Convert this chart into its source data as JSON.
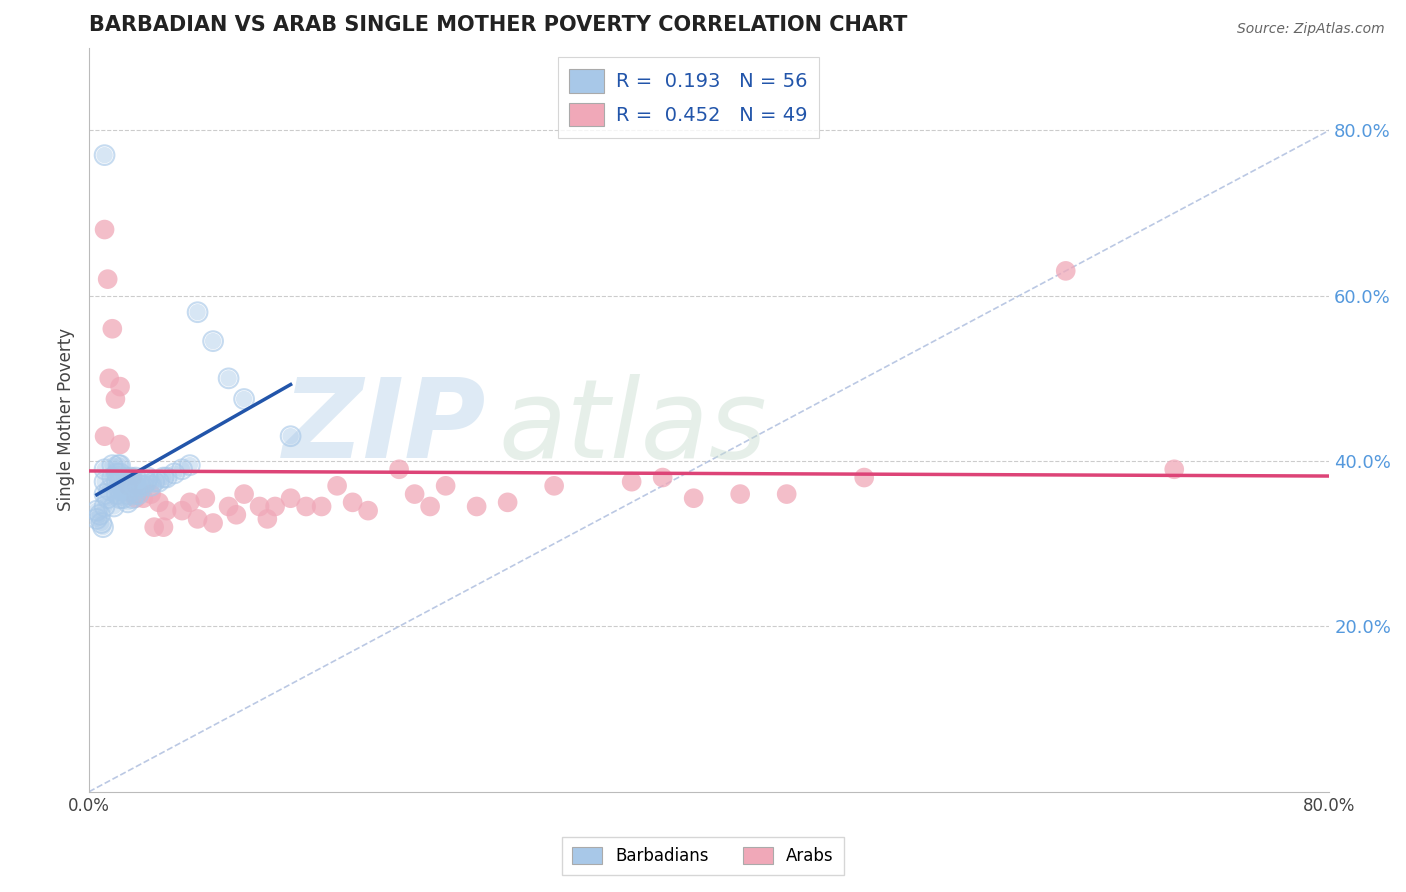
{
  "title": "BARBADIAN VS ARAB SINGLE MOTHER POVERTY CORRELATION CHART",
  "source": "Source: ZipAtlas.com",
  "ylabel": "Single Mother Poverty",
  "xlim": [
    0.0,
    0.8
  ],
  "ylim": [
    0.0,
    0.9
  ],
  "blue_color": "#A8C8E8",
  "pink_color": "#F0A8B8",
  "blue_line_color": "#2255AA",
  "pink_line_color": "#DD4477",
  "diag_color": "#AABBDD",
  "grid_color": "#CCCCCC",
  "right_tick_color": "#5599DD",
  "background_color": "#FFFFFF",
  "barbadians_x": [
    0.005,
    0.005,
    0.007,
    0.008,
    0.009,
    0.01,
    0.01,
    0.01,
    0.01,
    0.01,
    0.012,
    0.013,
    0.015,
    0.015,
    0.016,
    0.018,
    0.018,
    0.018,
    0.019,
    0.02,
    0.02,
    0.02,
    0.02,
    0.02,
    0.022,
    0.022,
    0.023,
    0.024,
    0.025,
    0.025,
    0.026,
    0.027,
    0.028,
    0.029,
    0.03,
    0.03,
    0.03,
    0.03,
    0.032,
    0.033,
    0.035,
    0.037,
    0.038,
    0.04,
    0.042,
    0.045,
    0.048,
    0.05,
    0.055,
    0.06,
    0.065,
    0.07,
    0.08,
    0.09,
    0.1,
    0.13
  ],
  "barbadians_y": [
    0.33,
    0.34,
    0.335,
    0.325,
    0.32,
    0.77,
    0.345,
    0.36,
    0.375,
    0.39,
    0.355,
    0.365,
    0.38,
    0.395,
    0.345,
    0.36,
    0.375,
    0.385,
    0.395,
    0.355,
    0.365,
    0.375,
    0.385,
    0.395,
    0.355,
    0.365,
    0.37,
    0.38,
    0.35,
    0.36,
    0.37,
    0.38,
    0.355,
    0.365,
    0.37,
    0.36,
    0.37,
    0.38,
    0.36,
    0.37,
    0.37,
    0.375,
    0.38,
    0.37,
    0.375,
    0.375,
    0.38,
    0.38,
    0.385,
    0.39,
    0.395,
    0.58,
    0.545,
    0.5,
    0.475,
    0.43
  ],
  "arabs_x": [
    0.01,
    0.01,
    0.012,
    0.013,
    0.015,
    0.017,
    0.02,
    0.02,
    0.025,
    0.028,
    0.03,
    0.035,
    0.04,
    0.042,
    0.045,
    0.048,
    0.05,
    0.06,
    0.065,
    0.07,
    0.075,
    0.08,
    0.09,
    0.095,
    0.1,
    0.11,
    0.115,
    0.12,
    0.13,
    0.14,
    0.15,
    0.16,
    0.17,
    0.18,
    0.2,
    0.21,
    0.22,
    0.23,
    0.25,
    0.27,
    0.3,
    0.35,
    0.37,
    0.39,
    0.42,
    0.45,
    0.5,
    0.63,
    0.7
  ],
  "arabs_y": [
    0.68,
    0.43,
    0.62,
    0.5,
    0.56,
    0.475,
    0.49,
    0.42,
    0.37,
    0.38,
    0.355,
    0.355,
    0.36,
    0.32,
    0.35,
    0.32,
    0.34,
    0.34,
    0.35,
    0.33,
    0.355,
    0.325,
    0.345,
    0.335,
    0.36,
    0.345,
    0.33,
    0.345,
    0.355,
    0.345,
    0.345,
    0.37,
    0.35,
    0.34,
    0.39,
    0.36,
    0.345,
    0.37,
    0.345,
    0.35,
    0.37,
    0.375,
    0.38,
    0.355,
    0.36,
    0.36,
    0.38,
    0.63,
    0.39
  ]
}
